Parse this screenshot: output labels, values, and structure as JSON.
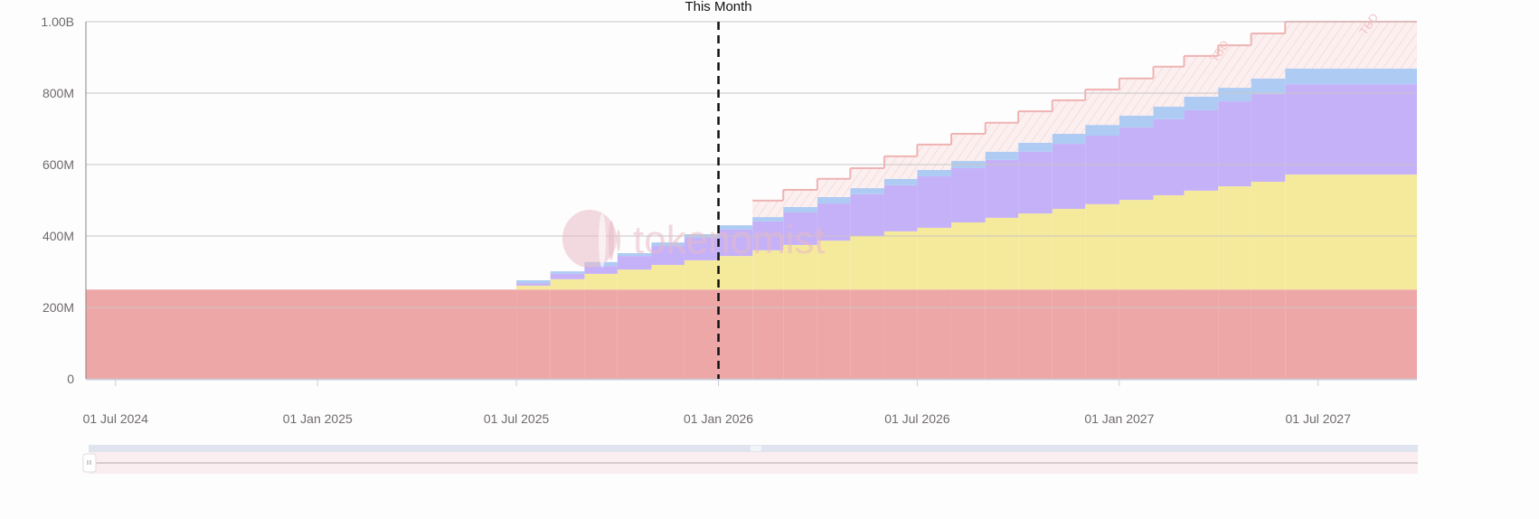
{
  "colors": {
    "base": "#eea7a7",
    "yellow": "#f5ea9c",
    "purple": "#c5b1f8",
    "blue": "#aecbf3",
    "tbd_stroke": "#efb3b3",
    "tbd_fill": "#fbeeee",
    "marker": "#111111"
  },
  "watermark": "tokenomist",
  "chart_data": {
    "type": "area",
    "step": true,
    "stacked": true,
    "xlim": [
      "2024-06-04",
      "2027-09-29"
    ],
    "ylim": [
      0,
      1000000000
    ],
    "y_ticks": [
      {
        "v": 0,
        "label": "0"
      },
      {
        "v": 200000000,
        "label": "200M"
      },
      {
        "v": 400000000,
        "label": "400M"
      },
      {
        "v": 600000000,
        "label": "600M"
      },
      {
        "v": 800000000,
        "label": "800M"
      },
      {
        "v": 1000000000,
        "label": "1.00B"
      }
    ],
    "x_ticks": [
      {
        "d": "2024-07-01",
        "label": "01 Jul 2024"
      },
      {
        "d": "2025-01-01",
        "label": "01 Jan 2025"
      },
      {
        "d": "2025-07-01",
        "label": "01 Jul 2025"
      },
      {
        "d": "2026-01-01",
        "label": "01 Jan 2026"
      },
      {
        "d": "2026-07-01",
        "label": "01 Jul 2026"
      },
      {
        "d": "2027-01-01",
        "label": "01 Jan 2027"
      },
      {
        "d": "2027-07-01",
        "label": "01 Jul 2027"
      }
    ],
    "grid": true,
    "marker": {
      "date": "2026-01-01",
      "label": "This Month"
    },
    "tbd_label": "TBD",
    "x": [
      "2024-06-01",
      "2025-07-01",
      "2025-08-01",
      "2025-09-01",
      "2025-10-01",
      "2025-11-01",
      "2025-12-01",
      "2026-01-01",
      "2026-02-01",
      "2026-03-01",
      "2026-04-01",
      "2026-05-01",
      "2026-06-01",
      "2026-07-01",
      "2026-08-01",
      "2026-09-01",
      "2026-10-01",
      "2026-11-01",
      "2026-12-01",
      "2027-01-01",
      "2027-02-01",
      "2027-03-01",
      "2027-04-01",
      "2027-05-01",
      "2027-06-01"
    ],
    "unit": "M",
    "series": [
      {
        "color_key": "base",
        "values": [
          250,
          250,
          250,
          250,
          250,
          250,
          250,
          250,
          250,
          250,
          250,
          250,
          250,
          250,
          250,
          250,
          250,
          250,
          250,
          250,
          250,
          250,
          250,
          250,
          250
        ]
      },
      {
        "color_key": "yellow",
        "values": [
          0,
          11,
          29,
          44,
          56,
          69,
          82,
          94,
          110,
          125,
          137,
          150,
          163,
          173,
          188,
          201,
          213,
          226,
          239,
          251,
          264,
          277,
          289,
          302,
          322
        ]
      },
      {
        "color_key": "purple",
        "values": [
          0,
          7,
          15,
          22,
          38,
          53,
          63,
          74,
          81,
          91,
          104,
          117,
          129,
          144,
          152,
          162,
          173,
          182,
          192,
          203,
          213,
          225,
          238,
          246,
          253
        ]
      },
      {
        "color_key": "blue",
        "values": [
          0,
          8,
          7,
          11,
          8,
          10,
          10,
          12,
          12,
          15,
          18,
          17,
          18,
          18,
          20,
          23,
          25,
          28,
          30,
          33,
          35,
          38,
          38,
          43,
          44
        ]
      },
      {
        "color_key": "tbd",
        "tbd": true,
        "values": [
          0,
          0,
          0,
          0,
          0,
          0,
          0,
          0,
          46,
          48,
          51,
          56,
          63,
          71,
          76,
          81,
          88,
          94,
          99,
          104,
          112,
          114,
          119,
          126,
          131
        ]
      }
    ]
  }
}
